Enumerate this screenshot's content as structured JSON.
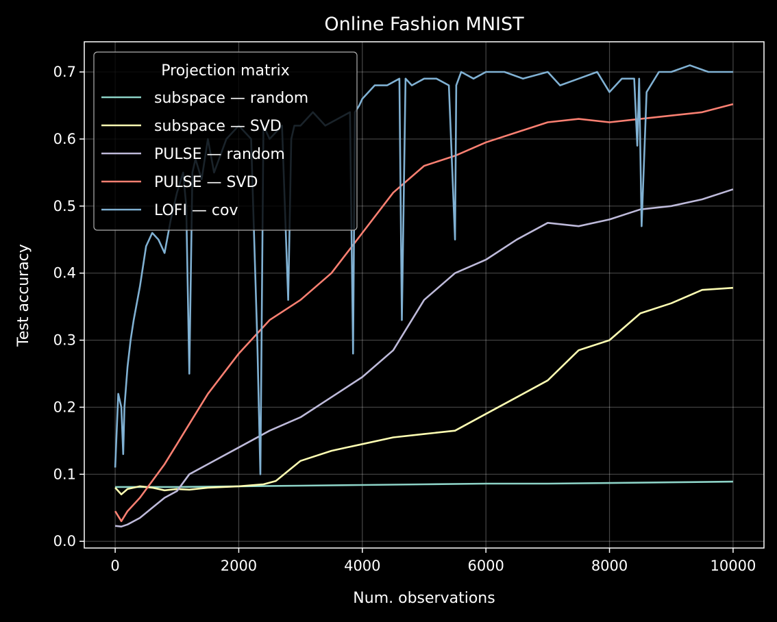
{
  "chart_data": {
    "type": "line",
    "title": "Online Fashion MNIST",
    "xlabel": "Num. observations",
    "ylabel": "Test accuracy",
    "xlim": [
      -500,
      10500
    ],
    "ylim": [
      -0.01,
      0.745
    ],
    "xticks": [
      0,
      2000,
      4000,
      6000,
      8000,
      10000
    ],
    "xtick_labels": [
      "0",
      "2000",
      "4000",
      "6000",
      "8000",
      "10000"
    ],
    "yticks": [
      0.0,
      0.1,
      0.2,
      0.3,
      0.4,
      0.5,
      0.6,
      0.7
    ],
    "ytick_labels": [
      "0.0",
      "0.1",
      "0.2",
      "0.3",
      "0.4",
      "0.5",
      "0.6",
      "0.7"
    ],
    "grid": true,
    "legend": {
      "title": "Projection matrix",
      "placement": "top-left"
    },
    "series": [
      {
        "name": "subspace — random",
        "color": "#8dd3c7",
        "x": [
          0,
          500,
          1000,
          2000,
          3000,
          4000,
          5000,
          6000,
          7000,
          8000,
          9000,
          10000
        ],
        "y": [
          0.081,
          0.081,
          0.081,
          0.082,
          0.083,
          0.084,
          0.085,
          0.086,
          0.086,
          0.087,
          0.088,
          0.089
        ]
      },
      {
        "name": "subspace — SVD",
        "color": "#ffffb3",
        "x": [
          0,
          100,
          200,
          400,
          600,
          800,
          1000,
          1200,
          1500,
          2000,
          2400,
          2600,
          2800,
          3000,
          3500,
          4000,
          4500,
          5000,
          5500,
          6000,
          6500,
          7000,
          7500,
          8000,
          8500,
          9000,
          9500,
          10000
        ],
        "y": [
          0.08,
          0.07,
          0.078,
          0.082,
          0.08,
          0.076,
          0.078,
          0.077,
          0.08,
          0.082,
          0.085,
          0.09,
          0.105,
          0.12,
          0.135,
          0.145,
          0.155,
          0.16,
          0.165,
          0.19,
          0.215,
          0.24,
          0.285,
          0.3,
          0.34,
          0.355,
          0.375,
          0.378
        ]
      },
      {
        "name": "PULSE — random",
        "color": "#bebada",
        "x": [
          0,
          100,
          200,
          400,
          600,
          800,
          1000,
          1200,
          1500,
          2000,
          2500,
          3000,
          3500,
          4000,
          4500,
          5000,
          5500,
          6000,
          6500,
          7000,
          7500,
          8000,
          8500,
          9000,
          9500,
          10000
        ],
        "y": [
          0.023,
          0.022,
          0.025,
          0.035,
          0.05,
          0.065,
          0.075,
          0.1,
          0.115,
          0.14,
          0.165,
          0.185,
          0.215,
          0.245,
          0.285,
          0.36,
          0.4,
          0.42,
          0.45,
          0.475,
          0.47,
          0.48,
          0.495,
          0.5,
          0.51,
          0.525
        ]
      },
      {
        "name": "PULSE — SVD",
        "color": "#fb8072",
        "x": [
          0,
          100,
          200,
          400,
          600,
          800,
          1000,
          1200,
          1500,
          2000,
          2500,
          3000,
          3500,
          4000,
          4500,
          5000,
          5500,
          6000,
          6500,
          7000,
          7500,
          8000,
          8500,
          9000,
          9500,
          10000
        ],
        "y": [
          0.045,
          0.03,
          0.045,
          0.065,
          0.09,
          0.115,
          0.145,
          0.175,
          0.22,
          0.28,
          0.33,
          0.36,
          0.4,
          0.46,
          0.52,
          0.56,
          0.575,
          0.595,
          0.61,
          0.625,
          0.63,
          0.625,
          0.63,
          0.635,
          0.64,
          0.652
        ]
      },
      {
        "name": "LOFI — cov",
        "color": "#80b1d3",
        "x": [
          0,
          50,
          100,
          130,
          150,
          200,
          250,
          300,
          400,
          500,
          600,
          700,
          800,
          900,
          1000,
          1100,
          1150,
          1200,
          1250,
          1300,
          1400,
          1500,
          1600,
          1800,
          2000,
          2200,
          2300,
          2350,
          2400,
          2500,
          2700,
          2800,
          2850,
          2900,
          3000,
          3200,
          3400,
          3600,
          3800,
          3850,
          3880,
          3950,
          4000,
          4200,
          4400,
          4600,
          4640,
          4700,
          4800,
          5000,
          5200,
          5400,
          5500,
          5520,
          5600,
          5800,
          6000,
          6300,
          6600,
          7000,
          7200,
          7500,
          7800,
          8000,
          8200,
          8400,
          8450,
          8480,
          8520,
          8600,
          8800,
          9000,
          9300,
          9600,
          10000
        ],
        "y": [
          0.11,
          0.22,
          0.2,
          0.13,
          0.2,
          0.26,
          0.3,
          0.33,
          0.38,
          0.44,
          0.46,
          0.45,
          0.43,
          0.48,
          0.52,
          0.55,
          0.5,
          0.25,
          0.55,
          0.57,
          0.54,
          0.6,
          0.55,
          0.6,
          0.62,
          0.6,
          0.3,
          0.1,
          0.62,
          0.6,
          0.62,
          0.36,
          0.6,
          0.62,
          0.62,
          0.64,
          0.62,
          0.63,
          0.64,
          0.28,
          0.64,
          0.65,
          0.66,
          0.68,
          0.68,
          0.69,
          0.33,
          0.69,
          0.68,
          0.69,
          0.69,
          0.68,
          0.45,
          0.68,
          0.7,
          0.69,
          0.7,
          0.7,
          0.69,
          0.7,
          0.68,
          0.69,
          0.7,
          0.67,
          0.69,
          0.69,
          0.59,
          0.69,
          0.47,
          0.67,
          0.7,
          0.7,
          0.71,
          0.7,
          0.7
        ]
      }
    ]
  }
}
